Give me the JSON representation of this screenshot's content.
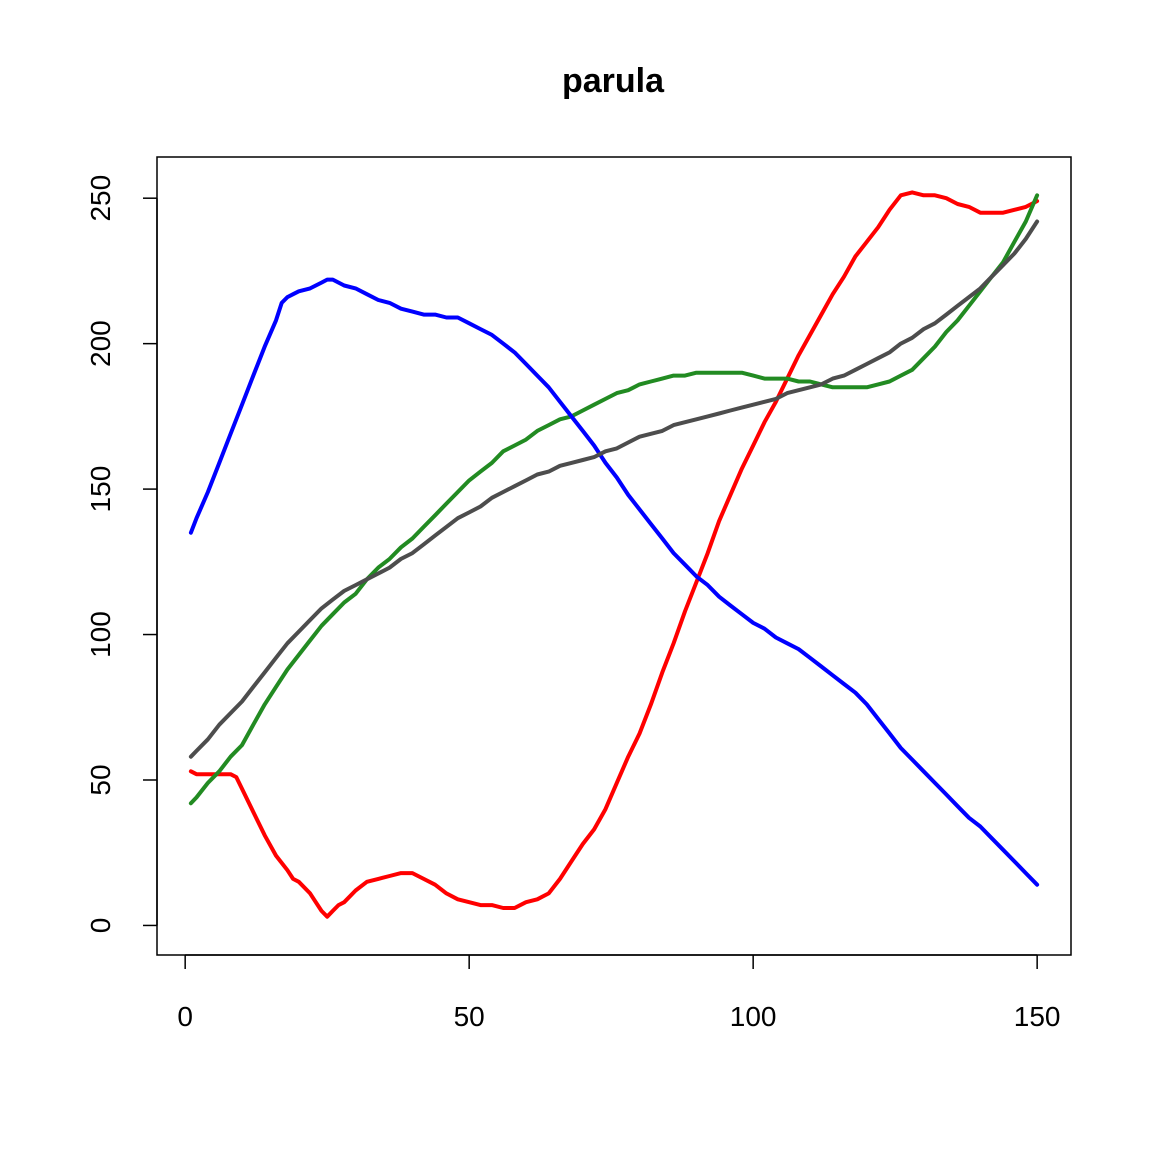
{
  "chart_data": {
    "type": "line",
    "title": "parula",
    "xlabel": "",
    "ylabel": "",
    "xlim": [
      -4.96,
      155.96
    ],
    "ylim": [
      -10.16,
      264.16
    ],
    "x_ticks": [
      0,
      50,
      100,
      150
    ],
    "y_ticks": [
      0,
      50,
      100,
      150,
      200,
      250
    ],
    "grid": false,
    "legend": "none",
    "series": [
      {
        "color": "#ff0000",
        "points": [
          [
            1,
            53
          ],
          [
            2,
            52
          ],
          [
            4,
            52
          ],
          [
            6,
            52
          ],
          [
            8,
            52
          ],
          [
            9,
            51
          ],
          [
            10,
            47
          ],
          [
            12,
            39
          ],
          [
            14,
            31
          ],
          [
            16,
            24
          ],
          [
            18,
            19
          ],
          [
            19,
            16
          ],
          [
            20,
            15
          ],
          [
            22,
            11
          ],
          [
            23,
            8
          ],
          [
            24,
            5
          ],
          [
            25,
            3
          ],
          [
            26,
            5
          ],
          [
            27,
            7
          ],
          [
            28,
            8
          ],
          [
            30,
            12
          ],
          [
            32,
            15
          ],
          [
            34,
            16
          ],
          [
            36,
            17
          ],
          [
            38,
            18
          ],
          [
            40,
            18
          ],
          [
            42,
            16
          ],
          [
            44,
            14
          ],
          [
            46,
            11
          ],
          [
            48,
            9
          ],
          [
            50,
            8
          ],
          [
            52,
            7
          ],
          [
            54,
            7
          ],
          [
            56,
            6
          ],
          [
            58,
            6
          ],
          [
            60,
            8
          ],
          [
            62,
            9
          ],
          [
            64,
            11
          ],
          [
            66,
            16
          ],
          [
            68,
            22
          ],
          [
            70,
            28
          ],
          [
            72,
            33
          ],
          [
            74,
            40
          ],
          [
            76,
            49
          ],
          [
            78,
            58
          ],
          [
            80,
            66
          ],
          [
            82,
            76
          ],
          [
            84,
            87
          ],
          [
            86,
            97
          ],
          [
            88,
            108
          ],
          [
            90,
            118
          ],
          [
            92,
            128
          ],
          [
            94,
            139
          ],
          [
            96,
            148
          ],
          [
            98,
            157
          ],
          [
            100,
            165
          ],
          [
            102,
            173
          ],
          [
            104,
            180
          ],
          [
            106,
            188
          ],
          [
            108,
            196
          ],
          [
            110,
            203
          ],
          [
            112,
            210
          ],
          [
            114,
            217
          ],
          [
            116,
            223
          ],
          [
            118,
            230
          ],
          [
            120,
            235
          ],
          [
            122,
            240
          ],
          [
            124,
            246
          ],
          [
            126,
            251
          ],
          [
            128,
            252
          ],
          [
            130,
            251
          ],
          [
            132,
            251
          ],
          [
            134,
            250
          ],
          [
            136,
            248
          ],
          [
            138,
            247
          ],
          [
            140,
            245
          ],
          [
            142,
            245
          ],
          [
            144,
            245
          ],
          [
            146,
            246
          ],
          [
            148,
            247
          ],
          [
            150,
            249
          ]
        ]
      },
      {
        "color": "#228b22",
        "points": [
          [
            1,
            42
          ],
          [
            2,
            44
          ],
          [
            4,
            49
          ],
          [
            6,
            53
          ],
          [
            8,
            58
          ],
          [
            10,
            62
          ],
          [
            12,
            69
          ],
          [
            14,
            76
          ],
          [
            16,
            82
          ],
          [
            18,
            88
          ],
          [
            20,
            93
          ],
          [
            22,
            98
          ],
          [
            24,
            103
          ],
          [
            26,
            107
          ],
          [
            28,
            111
          ],
          [
            30,
            114
          ],
          [
            32,
            119
          ],
          [
            34,
            123
          ],
          [
            36,
            126
          ],
          [
            38,
            130
          ],
          [
            40,
            133
          ],
          [
            42,
            137
          ],
          [
            44,
            141
          ],
          [
            46,
            145
          ],
          [
            48,
            149
          ],
          [
            50,
            153
          ],
          [
            52,
            156
          ],
          [
            54,
            159
          ],
          [
            56,
            163
          ],
          [
            58,
            165
          ],
          [
            60,
            167
          ],
          [
            62,
            170
          ],
          [
            64,
            172
          ],
          [
            66,
            174
          ],
          [
            68,
            175
          ],
          [
            70,
            177
          ],
          [
            72,
            179
          ],
          [
            74,
            181
          ],
          [
            76,
            183
          ],
          [
            78,
            184
          ],
          [
            80,
            186
          ],
          [
            82,
            187
          ],
          [
            84,
            188
          ],
          [
            86,
            189
          ],
          [
            88,
            189
          ],
          [
            90,
            190
          ],
          [
            92,
            190
          ],
          [
            94,
            190
          ],
          [
            96,
            190
          ],
          [
            98,
            190
          ],
          [
            100,
            189
          ],
          [
            102,
            188
          ],
          [
            104,
            188
          ],
          [
            106,
            188
          ],
          [
            108,
            187
          ],
          [
            110,
            187
          ],
          [
            112,
            186
          ],
          [
            114,
            185
          ],
          [
            116,
            185
          ],
          [
            118,
            185
          ],
          [
            120,
            185
          ],
          [
            122,
            186
          ],
          [
            124,
            187
          ],
          [
            126,
            189
          ],
          [
            128,
            191
          ],
          [
            130,
            195
          ],
          [
            132,
            199
          ],
          [
            134,
            204
          ],
          [
            136,
            208
          ],
          [
            138,
            213
          ],
          [
            140,
            218
          ],
          [
            142,
            223
          ],
          [
            144,
            228
          ],
          [
            146,
            235
          ],
          [
            148,
            242
          ],
          [
            150,
            251
          ]
        ]
      },
      {
        "color": "#0000ff",
        "points": [
          [
            1,
            135
          ],
          [
            2,
            140
          ],
          [
            4,
            149
          ],
          [
            6,
            159
          ],
          [
            8,
            169
          ],
          [
            10,
            179
          ],
          [
            12,
            189
          ],
          [
            14,
            199
          ],
          [
            16,
            208
          ],
          [
            17,
            214
          ],
          [
            18,
            216
          ],
          [
            19,
            217
          ],
          [
            20,
            218
          ],
          [
            22,
            219
          ],
          [
            24,
            221
          ],
          [
            25,
            222
          ],
          [
            26,
            222
          ],
          [
            28,
            220
          ],
          [
            30,
            219
          ],
          [
            32,
            217
          ],
          [
            34,
            215
          ],
          [
            36,
            214
          ],
          [
            38,
            212
          ],
          [
            40,
            211
          ],
          [
            42,
            210
          ],
          [
            44,
            210
          ],
          [
            46,
            209
          ],
          [
            48,
            209
          ],
          [
            50,
            207
          ],
          [
            52,
            205
          ],
          [
            54,
            203
          ],
          [
            56,
            200
          ],
          [
            58,
            197
          ],
          [
            60,
            193
          ],
          [
            62,
            189
          ],
          [
            64,
            185
          ],
          [
            66,
            180
          ],
          [
            68,
            175
          ],
          [
            70,
            170
          ],
          [
            72,
            165
          ],
          [
            74,
            159
          ],
          [
            76,
            154
          ],
          [
            78,
            148
          ],
          [
            80,
            143
          ],
          [
            82,
            138
          ],
          [
            84,
            133
          ],
          [
            86,
            128
          ],
          [
            88,
            124
          ],
          [
            90,
            120
          ],
          [
            92,
            117
          ],
          [
            94,
            113
          ],
          [
            96,
            110
          ],
          [
            98,
            107
          ],
          [
            100,
            104
          ],
          [
            102,
            102
          ],
          [
            104,
            99
          ],
          [
            106,
            97
          ],
          [
            108,
            95
          ],
          [
            110,
            92
          ],
          [
            112,
            89
          ],
          [
            114,
            86
          ],
          [
            116,
            83
          ],
          [
            118,
            80
          ],
          [
            120,
            76
          ],
          [
            122,
            71
          ],
          [
            124,
            66
          ],
          [
            126,
            61
          ],
          [
            128,
            57
          ],
          [
            130,
            53
          ],
          [
            132,
            49
          ],
          [
            134,
            45
          ],
          [
            136,
            41
          ],
          [
            138,
            37
          ],
          [
            140,
            34
          ],
          [
            142,
            30
          ],
          [
            144,
            26
          ],
          [
            146,
            22
          ],
          [
            148,
            18
          ],
          [
            150,
            14
          ]
        ]
      },
      {
        "color": "#4d4d4d",
        "points": [
          [
            1,
            58
          ],
          [
            2,
            60
          ],
          [
            4,
            64
          ],
          [
            6,
            69
          ],
          [
            8,
            73
          ],
          [
            10,
            77
          ],
          [
            12,
            82
          ],
          [
            14,
            87
          ],
          [
            16,
            92
          ],
          [
            18,
            97
          ],
          [
            20,
            101
          ],
          [
            22,
            105
          ],
          [
            24,
            109
          ],
          [
            26,
            112
          ],
          [
            28,
            115
          ],
          [
            30,
            117
          ],
          [
            32,
            119
          ],
          [
            34,
            121
          ],
          [
            36,
            123
          ],
          [
            38,
            126
          ],
          [
            40,
            128
          ],
          [
            42,
            131
          ],
          [
            44,
            134
          ],
          [
            46,
            137
          ],
          [
            48,
            140
          ],
          [
            50,
            142
          ],
          [
            52,
            144
          ],
          [
            54,
            147
          ],
          [
            56,
            149
          ],
          [
            58,
            151
          ],
          [
            60,
            153
          ],
          [
            62,
            155
          ],
          [
            64,
            156
          ],
          [
            66,
            158
          ],
          [
            68,
            159
          ],
          [
            70,
            160
          ],
          [
            72,
            161
          ],
          [
            74,
            163
          ],
          [
            76,
            164
          ],
          [
            78,
            166
          ],
          [
            80,
            168
          ],
          [
            82,
            169
          ],
          [
            84,
            170
          ],
          [
            86,
            172
          ],
          [
            88,
            173
          ],
          [
            90,
            174
          ],
          [
            92,
            175
          ],
          [
            94,
            176
          ],
          [
            96,
            177
          ],
          [
            98,
            178
          ],
          [
            100,
            179
          ],
          [
            102,
            180
          ],
          [
            104,
            181
          ],
          [
            106,
            183
          ],
          [
            108,
            184
          ],
          [
            110,
            185
          ],
          [
            112,
            186
          ],
          [
            114,
            188
          ],
          [
            116,
            189
          ],
          [
            118,
            191
          ],
          [
            120,
            193
          ],
          [
            122,
            195
          ],
          [
            124,
            197
          ],
          [
            126,
            200
          ],
          [
            128,
            202
          ],
          [
            130,
            205
          ],
          [
            132,
            207
          ],
          [
            134,
            210
          ],
          [
            136,
            213
          ],
          [
            138,
            216
          ],
          [
            140,
            219
          ],
          [
            142,
            223
          ],
          [
            144,
            227
          ],
          [
            146,
            231
          ],
          [
            148,
            236
          ],
          [
            150,
            242
          ]
        ]
      }
    ]
  }
}
